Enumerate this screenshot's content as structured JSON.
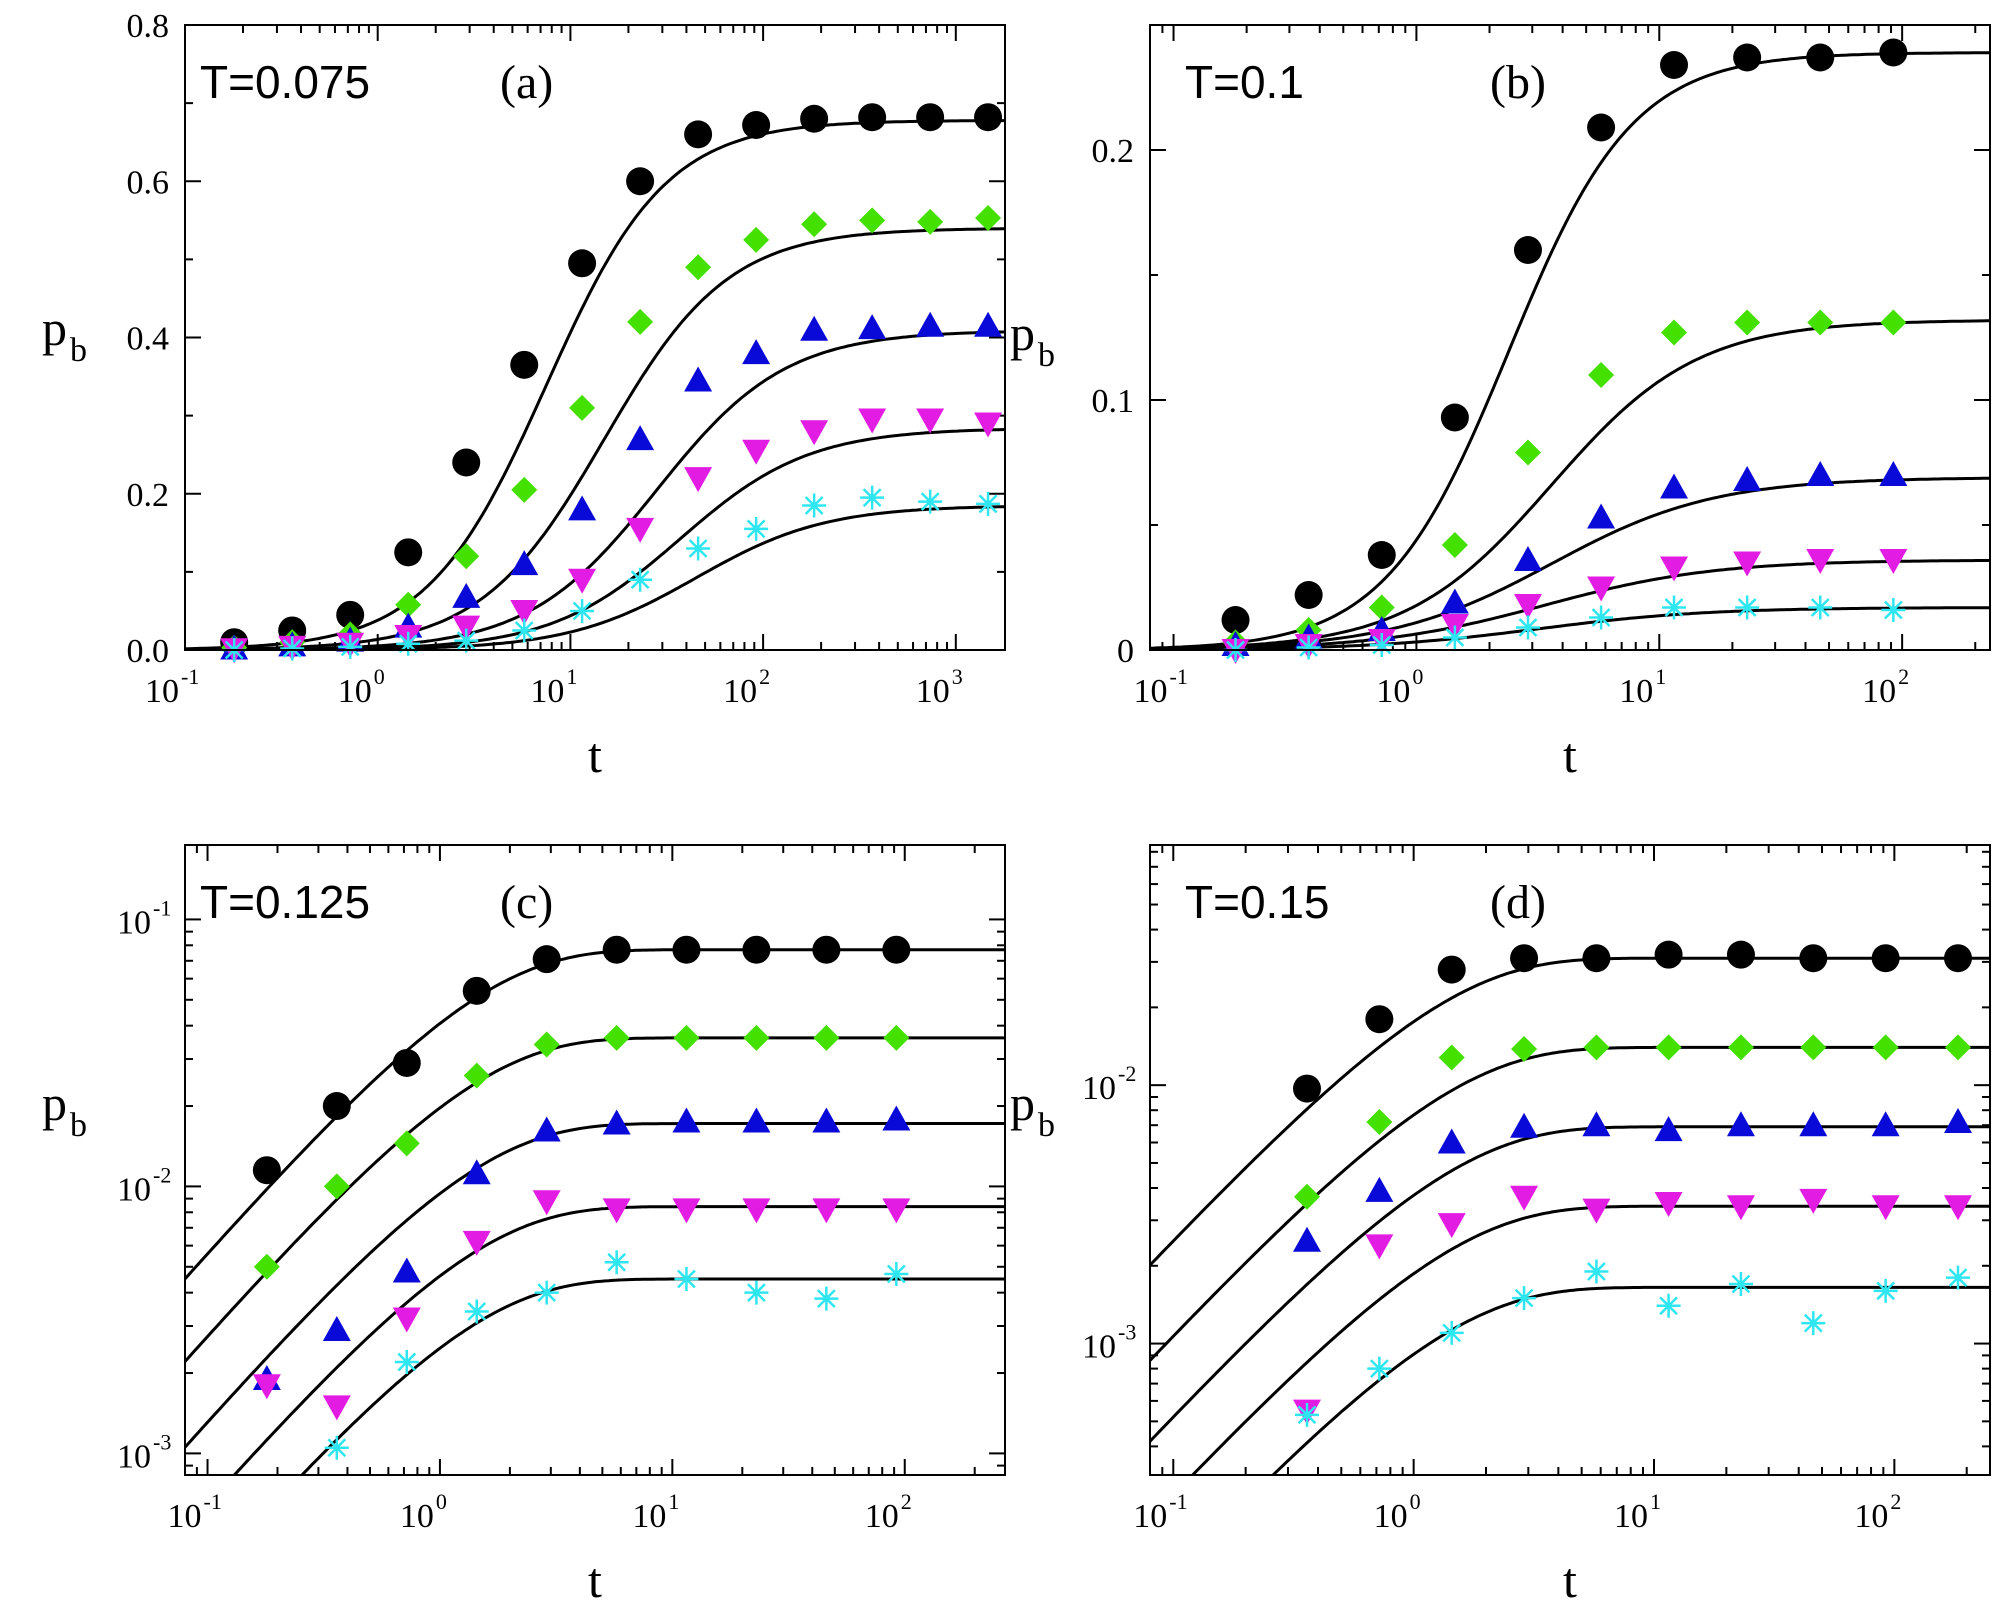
{
  "colors": {
    "circle": "#000000",
    "diamond": "#44e000",
    "triangle_up": "#0a0ad8",
    "triangle_down": "#e31ce3",
    "star": "#2ee6f0"
  },
  "chart_data": [
    {
      "type": "scatter",
      "panel": "(a)",
      "annotation": "T=0.075",
      "xlabel": "t",
      "ylabel": "p",
      "ylabel_sub": "b",
      "xscale": "log",
      "yscale": "linear",
      "xlim": [
        0.1,
        1800
      ],
      "ylim": [
        0,
        0.8
      ],
      "xticks": [
        {
          "base": "10",
          "exp": "-1",
          "v": 0.1
        },
        {
          "base": "10",
          "exp": "0",
          "v": 1
        },
        {
          "base": "10",
          "exp": "1",
          "v": 10
        },
        {
          "base": "10",
          "exp": "2",
          "v": 100
        },
        {
          "base": "10",
          "exp": "3",
          "v": 1000
        }
      ],
      "yticks": [
        {
          "label": "0.0",
          "v": 0
        },
        {
          "label": "0.2",
          "v": 0.2
        },
        {
          "label": "0.4",
          "v": 0.4
        },
        {
          "label": "0.6",
          "v": 0.6
        },
        {
          "label": "0.8",
          "v": 0.8
        }
      ],
      "series": [
        {
          "name": "circle",
          "marker": "circle",
          "x": [
            0.18,
            0.36,
            0.72,
            1.44,
            2.88,
            5.76,
            11.5,
            23,
            46,
            92,
            184,
            368,
            736,
            1470
          ],
          "y": [
            0.01,
            0.025,
            0.045,
            0.125,
            0.24,
            0.365,
            0.495,
            0.6,
            0.66,
            0.672,
            0.68,
            0.682,
            0.682,
            0.682
          ]
        },
        {
          "name": "diamond",
          "marker": "diamond",
          "x": [
            0.18,
            0.36,
            0.72,
            1.44,
            2.88,
            5.76,
            11.5,
            23,
            46,
            92,
            184,
            368,
            736,
            1470
          ],
          "y": [
            0.003,
            0.01,
            0.02,
            0.058,
            0.12,
            0.205,
            0.31,
            0.42,
            0.49,
            0.525,
            0.545,
            0.55,
            0.548,
            0.553
          ]
        },
        {
          "name": "triangle-up",
          "marker": "triangle-up",
          "x": [
            0.18,
            0.36,
            0.72,
            1.44,
            2.88,
            5.76,
            11.5,
            23,
            46,
            92,
            184,
            368,
            736,
            1470
          ],
          "y": [
            0.002,
            0.006,
            0.012,
            0.03,
            0.068,
            0.11,
            0.18,
            0.27,
            0.345,
            0.38,
            0.41,
            0.412,
            0.415,
            0.415
          ]
        },
        {
          "name": "triangle-down",
          "marker": "triangle-down",
          "x": [
            0.18,
            0.36,
            0.72,
            1.44,
            2.88,
            5.76,
            11.5,
            23,
            46,
            92,
            184,
            368,
            736,
            1470
          ],
          "y": [
            0.001,
            0.004,
            0.008,
            0.018,
            0.03,
            0.05,
            0.09,
            0.155,
            0.22,
            0.255,
            0.28,
            0.295,
            0.295,
            0.29
          ]
        },
        {
          "name": "star",
          "marker": "star",
          "x": [
            0.18,
            0.36,
            0.72,
            1.44,
            2.88,
            5.76,
            11.5,
            23,
            46,
            92,
            184,
            368,
            736,
            1470
          ],
          "y": [
            0.0,
            0.002,
            0.004,
            0.008,
            0.012,
            0.025,
            0.05,
            0.09,
            0.13,
            0.155,
            0.185,
            0.195,
            0.19,
            0.187
          ]
        }
      ],
      "fits": [
        {
          "plateau": 0.678,
          "tau": 7.5,
          "n": 1.4
        },
        {
          "plateau": 0.54,
          "tau": 15,
          "n": 1.35
        },
        {
          "plateau": 0.409,
          "tau": 28,
          "n": 1.3
        },
        {
          "plateau": 0.284,
          "tau": 37,
          "n": 1.3
        },
        {
          "plateau": 0.185,
          "tau": 45,
          "n": 1.3
        }
      ]
    },
    {
      "type": "scatter",
      "panel": "(b)",
      "annotation": "T=0.1",
      "xlabel": "t",
      "ylabel": "p",
      "ylabel_sub": "b",
      "xscale": "log",
      "yscale": "linear",
      "xlim": [
        0.08,
        230
      ],
      "ylim": [
        0,
        0.25
      ],
      "xticks": [
        {
          "base": "10",
          "exp": "-1",
          "v": 0.1
        },
        {
          "base": "10",
          "exp": "0",
          "v": 1
        },
        {
          "base": "10",
          "exp": "1",
          "v": 10
        },
        {
          "base": "10",
          "exp": "2",
          "v": 100
        }
      ],
      "yticks": [
        {
          "label": "0",
          "v": 0
        },
        {
          "label": "0.1",
          "v": 0.1
        },
        {
          "label": "0.2",
          "v": 0.2
        }
      ],
      "series": [
        {
          "name": "circle",
          "marker": "circle",
          "x": [
            0.18,
            0.36,
            0.72,
            1.44,
            2.88,
            5.76,
            11.5,
            23,
            46,
            92
          ],
          "y": [
            0.012,
            0.022,
            0.038,
            0.093,
            0.16,
            0.209,
            0.234,
            0.237,
            0.237,
            0.239
          ]
        },
        {
          "name": "diamond",
          "marker": "diamond",
          "x": [
            0.18,
            0.36,
            0.72,
            1.44,
            2.88,
            5.76,
            11.5,
            23,
            46,
            92
          ],
          "y": [
            0.003,
            0.008,
            0.017,
            0.042,
            0.079,
            0.11,
            0.127,
            0.131,
            0.131,
            0.131
          ]
        },
        {
          "name": "triangle-up",
          "marker": "triangle-up",
          "x": [
            0.18,
            0.36,
            0.72,
            1.44,
            2.88,
            5.76,
            11.5,
            23,
            46,
            92
          ],
          "y": [
            0.002,
            0.005,
            0.008,
            0.019,
            0.036,
            0.053,
            0.065,
            0.068,
            0.07,
            0.07
          ]
        },
        {
          "name": "triangle-down",
          "marker": "triangle-down",
          "x": [
            0.18,
            0.36,
            0.72,
            1.44,
            2.88,
            5.76,
            11.5,
            23,
            46,
            92
          ],
          "y": [
            0.0,
            0.002,
            0.004,
            0.01,
            0.018,
            0.025,
            0.033,
            0.035,
            0.036,
            0.036
          ]
        },
        {
          "name": "star",
          "marker": "star",
          "x": [
            0.18,
            0.36,
            0.72,
            1.44,
            2.88,
            5.76,
            11.5,
            23,
            46,
            92
          ],
          "y": [
            0.0,
            0.001,
            0.002,
            0.005,
            0.009,
            0.013,
            0.017,
            0.017,
            0.017,
            0.016
          ]
        }
      ],
      "fits": [
        {
          "plateau": 0.239,
          "tau": 2.4,
          "n": 1.7
        },
        {
          "plateau": 0.132,
          "tau": 3.6,
          "n": 1.45
        },
        {
          "plateau": 0.069,
          "tau": 3.6,
          "n": 1.3
        },
        {
          "plateau": 0.036,
          "tau": 3.4,
          "n": 1.25
        },
        {
          "plateau": 0.017,
          "tau": 3.2,
          "n": 1.25
        }
      ]
    },
    {
      "type": "scatter",
      "panel": "(c)",
      "annotation": "T=0.125",
      "xlabel": "t",
      "ylabel": "p",
      "ylabel_sub": "b",
      "xscale": "log",
      "yscale": "log",
      "xlim": [
        0.08,
        270
      ],
      "ylim": [
        0.00083,
        0.19
      ],
      "xticks": [
        {
          "base": "10",
          "exp": "-1",
          "v": 0.1
        },
        {
          "base": "10",
          "exp": "0",
          "v": 1
        },
        {
          "base": "10",
          "exp": "1",
          "v": 10
        },
        {
          "base": "10",
          "exp": "2",
          "v": 100
        }
      ],
      "yticks": [
        {
          "base": "10",
          "exp": "-3",
          "v": 0.001
        },
        {
          "base": "10",
          "exp": "-2",
          "v": 0.01
        },
        {
          "base": "10",
          "exp": "-1",
          "v": 0.1
        }
      ],
      "series": [
        {
          "name": "circle",
          "marker": "circle",
          "x": [
            0.18,
            0.36,
            0.72,
            1.44,
            2.88,
            5.76,
            11.5,
            23,
            46,
            92
          ],
          "y": [
            0.0115,
            0.02,
            0.029,
            0.054,
            0.071,
            0.077,
            0.077,
            0.077,
            0.077,
            0.077
          ]
        },
        {
          "name": "diamond",
          "marker": "diamond",
          "x": [
            0.18,
            0.36,
            0.72,
            1.44,
            2.88,
            5.76,
            11.5,
            23,
            46,
            92
          ],
          "y": [
            0.005,
            0.01,
            0.0145,
            0.026,
            0.034,
            0.036,
            0.036,
            0.036,
            0.036,
            0.036
          ]
        },
        {
          "name": "triangle-up",
          "marker": "triangle-up",
          "x": [
            0.18,
            0.36,
            0.72,
            1.44,
            2.88,
            5.76,
            11.5,
            23,
            46,
            92
          ],
          "y": [
            0.0019,
            0.0029,
            0.0048,
            0.0112,
            0.0162,
            0.0172,
            0.0175,
            0.0175,
            0.0175,
            0.0178
          ]
        },
        {
          "name": "triangle-down",
          "marker": "triangle-down",
          "x": [
            0.18,
            0.36,
            0.72,
            1.44,
            2.88,
            5.76,
            11.5,
            23,
            46,
            92
          ],
          "y": [
            0.0018,
            0.0015,
            0.0032,
            0.0062,
            0.0088,
            0.0082,
            0.0082,
            0.0082,
            0.0082,
            0.0082
          ]
        },
        {
          "name": "star",
          "marker": "star",
          "x": [
            0.36,
            0.72,
            1.44,
            2.88,
            5.76,
            11.5,
            23,
            46,
            92
          ],
          "y": [
            0.00105,
            0.0022,
            0.0034,
            0.004,
            0.0052,
            0.0045,
            0.004,
            0.0038,
            0.0047
          ]
        }
      ],
      "fits": [
        {
          "plateau": 0.077,
          "k": 0.058
        },
        {
          "plateau": 0.036,
          "k": 0.0285
        },
        {
          "plateau": 0.0172,
          "k": 0.0136
        },
        {
          "plateau": 0.0084,
          "k": 0.0067
        },
        {
          "plateau": 0.0045,
          "k": 0.0036
        }
      ]
    },
    {
      "type": "scatter",
      "panel": "(d)",
      "annotation": "T=0.15",
      "xlabel": "t",
      "ylabel": "p",
      "ylabel_sub": "b",
      "xscale": "log",
      "yscale": "log",
      "xlim": [
        0.08,
        250
      ],
      "ylim": [
        0.00031,
        0.085
      ],
      "xticks": [
        {
          "base": "10",
          "exp": "-1",
          "v": 0.1
        },
        {
          "base": "10",
          "exp": "0",
          "v": 1
        },
        {
          "base": "10",
          "exp": "1",
          "v": 10
        },
        {
          "base": "10",
          "exp": "2",
          "v": 100
        }
      ],
      "yticks": [
        {
          "base": "10",
          "exp": "-3",
          "v": 0.001
        },
        {
          "base": "10",
          "exp": "-2",
          "v": 0.01
        }
      ],
      "series": [
        {
          "name": "circle",
          "marker": "circle",
          "x": [
            0.36,
            0.72,
            1.44,
            2.88,
            5.76,
            11.5,
            23,
            46,
            92,
            184
          ],
          "y": [
            0.0097,
            0.018,
            0.028,
            0.031,
            0.031,
            0.032,
            0.032,
            0.031,
            0.031,
            0.031
          ]
        },
        {
          "name": "diamond",
          "marker": "diamond",
          "x": [
            0.36,
            0.72,
            1.44,
            2.88,
            5.76,
            11.5,
            23,
            46,
            92,
            184
          ],
          "y": [
            0.0037,
            0.0072,
            0.0128,
            0.0138,
            0.014,
            0.014,
            0.014,
            0.014,
            0.014,
            0.014
          ]
        },
        {
          "name": "triangle-up",
          "marker": "triangle-up",
          "x": [
            0.36,
            0.72,
            1.44,
            2.88,
            5.76,
            11.5,
            23,
            46,
            92,
            184
          ],
          "y": [
            0.0025,
            0.0039,
            0.006,
            0.0069,
            0.007,
            0.0067,
            0.007,
            0.007,
            0.007,
            0.0072
          ]
        },
        {
          "name": "triangle-down",
          "marker": "triangle-down",
          "x": [
            0.36,
            0.72,
            1.44,
            2.88,
            5.76,
            11.5,
            23,
            46,
            92,
            184
          ],
          "y": [
            0.00055,
            0.0024,
            0.0029,
            0.0037,
            0.0033,
            0.0035,
            0.0034,
            0.0036,
            0.0034,
            0.0034
          ]
        },
        {
          "name": "star",
          "marker": "star",
          "x": [
            0.36,
            0.72,
            1.44,
            2.88,
            5.76,
            11.5,
            23,
            46,
            92,
            184
          ],
          "y": [
            0.00053,
            0.0008,
            0.0011,
            0.0015,
            0.0019,
            0.0014,
            0.0017,
            0.0012,
            0.0016,
            0.0018
          ]
        }
      ],
      "fits": [
        {
          "plateau": 0.031,
          "k": 0.026
        },
        {
          "plateau": 0.014,
          "k": 0.0111
        },
        {
          "plateau": 0.0069,
          "k": 0.0054
        },
        {
          "plateau": 0.0034,
          "k": 0.0027
        },
        {
          "plateau": 0.00165,
          "k": 0.00132
        }
      ]
    }
  ]
}
